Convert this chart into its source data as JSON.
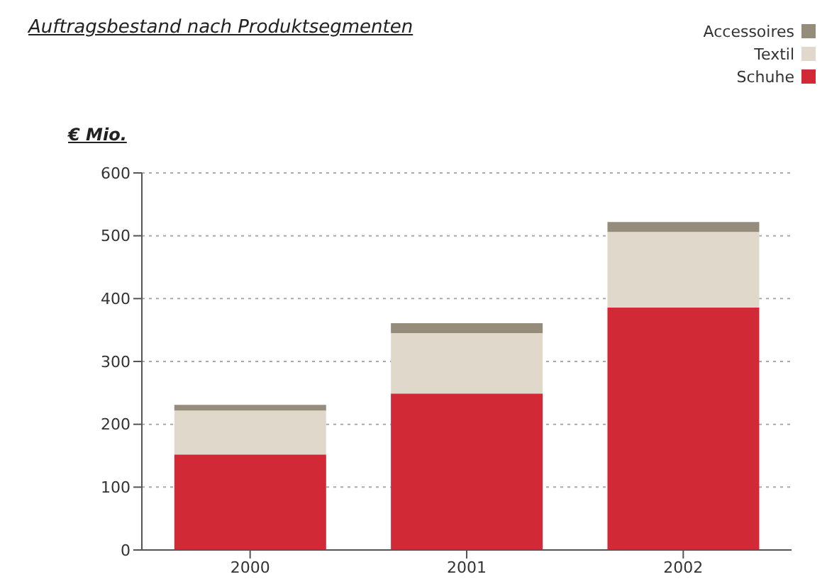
{
  "chart_data": {
    "type": "bar",
    "title": "Auftragsbestand nach Produktsegmenten",
    "ylabel": "€ Mio.",
    "categories": [
      "2000",
      "2001",
      "2002"
    ],
    "stacked": true,
    "series": [
      {
        "name": "Schuhe",
        "color": "#d12a36",
        "values": [
          152,
          249,
          386
        ]
      },
      {
        "name": "Textil",
        "color": "#e0d9cb",
        "values": [
          70,
          96,
          120
        ]
      },
      {
        "name": "Accessoires",
        "color": "#958c7c",
        "values": [
          9,
          16,
          16
        ]
      }
    ],
    "ylim": [
      0,
      600
    ],
    "yticks": [
      0,
      100,
      200,
      300,
      400,
      500,
      600
    ],
    "grid": "y",
    "legend": "top right"
  }
}
